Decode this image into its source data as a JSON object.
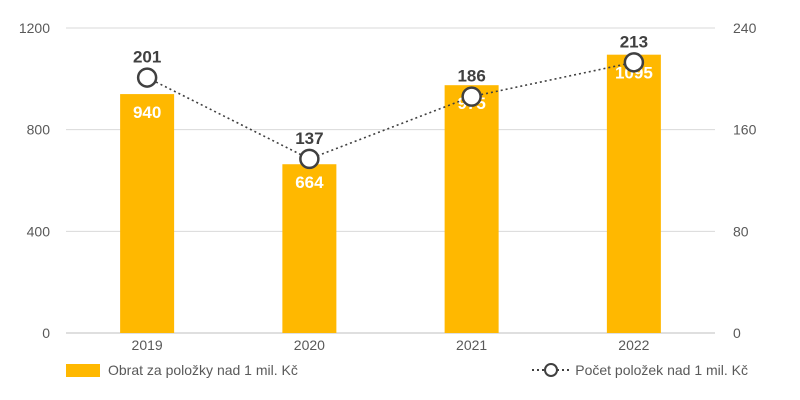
{
  "chart_data": {
    "type": "bar",
    "categories": [
      "2019",
      "2020",
      "2021",
      "2022"
    ],
    "series": [
      {
        "name": "Obrat za položky nad 1 mil. Kč",
        "type": "bar",
        "axis": "left",
        "values": [
          940,
          664,
          975,
          1095
        ],
        "color": "#FFB800"
      },
      {
        "name": "Počet položek nad 1 mil. Kč",
        "type": "line",
        "axis": "right",
        "values": [
          201,
          137,
          186,
          213
        ],
        "color": "#404040",
        "line_style": "dotted",
        "marker": "open-circle"
      }
    ],
    "y_left": {
      "ticks": [
        0,
        400,
        800,
        1200
      ],
      "ylim": [
        0,
        1200
      ]
    },
    "y_right": {
      "ticks": [
        0,
        80,
        160,
        240
      ],
      "ylim": [
        0,
        240
      ]
    },
    "grid": true,
    "legend_position": "bottom"
  }
}
